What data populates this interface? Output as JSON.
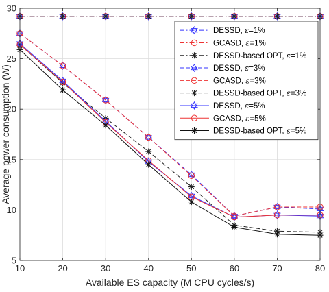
{
  "chart_data": {
    "type": "line",
    "title": "",
    "xlabel": "Available ES capacity (M CPU cycles/s)",
    "ylabel": "Average power consumption (W)",
    "xlim": [
      10,
      80
    ],
    "ylim": [
      5,
      30
    ],
    "x": [
      10,
      20,
      30,
      40,
      50,
      60,
      70,
      80
    ],
    "xticks": [
      "10",
      "20",
      "30",
      "40",
      "50",
      "60",
      "70",
      "80"
    ],
    "yticks": [
      "5",
      "10",
      "15",
      "20",
      "25",
      "30"
    ],
    "grid": true,
    "legend_position": "top-right",
    "series": [
      {
        "name": "DESSD, ε=1%",
        "label_prefix": "DESSD, ",
        "label_suffix": "=1%",
        "color": "#3333ff",
        "dash": "dashdot",
        "marker": "hexagram",
        "values": [
          29.2,
          29.2,
          29.2,
          29.2,
          29.2,
          29.2,
          29.2,
          29.2
        ]
      },
      {
        "name": "GCASD, ε=1%",
        "label_prefix": "GCASD, ",
        "label_suffix": "=1%",
        "color": "#ee3333",
        "dash": "dashdot",
        "marker": "circle",
        "values": [
          29.2,
          29.2,
          29.2,
          29.2,
          29.2,
          29.2,
          29.2,
          29.2
        ]
      },
      {
        "name": "DESSD-based OPT, ε=1%",
        "label_prefix": "DESSD-based OPT, ",
        "label_suffix": "=1%",
        "color": "#222222",
        "dash": "dashdot",
        "marker": "asterisk",
        "values": [
          29.2,
          29.2,
          29.2,
          29.2,
          29.2,
          29.2,
          29.2,
          29.2
        ]
      },
      {
        "name": "DESSD, ε=3%",
        "label_prefix": "DESSD, ",
        "label_suffix": "=3%",
        "color": "#3333ff",
        "dash": "dashed",
        "marker": "hexagram",
        "values": [
          27.5,
          24.3,
          20.9,
          17.2,
          13.5,
          9.4,
          10.3,
          10.1
        ]
      },
      {
        "name": "GCASD, ε=3%",
        "label_prefix": "GCASD, ",
        "label_suffix": "=3%",
        "color": "#ee3333",
        "dash": "dashed",
        "marker": "circle",
        "values": [
          27.5,
          24.3,
          20.9,
          17.2,
          13.4,
          9.4,
          10.3,
          10.3
        ]
      },
      {
        "name": "DESSD-based OPT, ε=3%",
        "label_prefix": "DESSD-based OPT, ",
        "label_suffix": "=3%",
        "color": "#222222",
        "dash": "dashed",
        "marker": "asterisk",
        "values": [
          26.4,
          22.6,
          19.1,
          15.8,
          12.3,
          8.5,
          7.9,
          7.8
        ]
      },
      {
        "name": "DESSD, ε=5%",
        "label_prefix": "DESSD, ",
        "label_suffix": "=5%",
        "color": "#3333ff",
        "dash": "solid",
        "marker": "hexagram",
        "values": [
          26.5,
          22.8,
          18.8,
          14.8,
          11.4,
          9.3,
          9.5,
          9.4
        ]
      },
      {
        "name": "GCASD, ε=5%",
        "label_prefix": "GCASD, ",
        "label_suffix": "=5%",
        "color": "#ee3333",
        "dash": "solid",
        "marker": "circle",
        "values": [
          26.4,
          22.7,
          18.7,
          14.9,
          11.3,
          9.3,
          9.5,
          9.5
        ]
      },
      {
        "name": "DESSD-based OPT, ε=5%",
        "label_prefix": "DESSD-based OPT, ",
        "label_suffix": "=5%",
        "color": "#111111",
        "dash": "solid",
        "marker": "asterisk",
        "values": [
          25.9,
          21.9,
          18.4,
          14.5,
          10.8,
          8.3,
          7.6,
          7.5
        ]
      }
    ]
  }
}
